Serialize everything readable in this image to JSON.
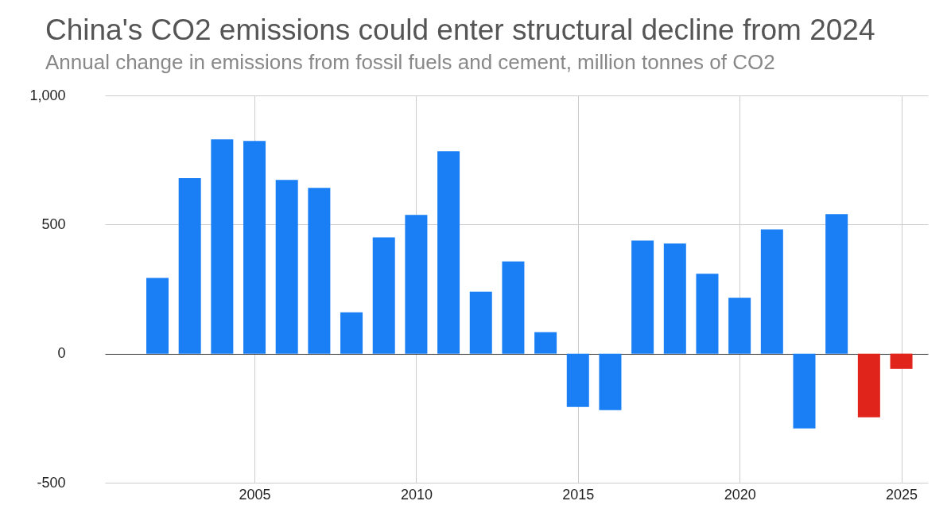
{
  "chart_data": {
    "type": "bar",
    "title": "China's CO2 emissions could enter structural decline from 2024",
    "subtitle": "Annual change in emissions from fossil fuels and cement, million tonnes of CO2",
    "x": [
      2002,
      2003,
      2004,
      2005,
      2006,
      2007,
      2008,
      2009,
      2010,
      2011,
      2012,
      2013,
      2014,
      2015,
      2016,
      2017,
      2018,
      2019,
      2020,
      2021,
      2022,
      2023,
      2024,
      2025
    ],
    "values": [
      293,
      680,
      830,
      824,
      673,
      642,
      160,
      450,
      537,
      784,
      240,
      357,
      83,
      -207,
      -219,
      438,
      426,
      309,
      216,
      481,
      -290,
      540,
      -247,
      -59
    ],
    "colors": [
      "#1a7ff5",
      "#1a7ff5",
      "#1a7ff5",
      "#1a7ff5",
      "#1a7ff5",
      "#1a7ff5",
      "#1a7ff5",
      "#1a7ff5",
      "#1a7ff5",
      "#1a7ff5",
      "#1a7ff5",
      "#1a7ff5",
      "#1a7ff5",
      "#1a7ff5",
      "#1a7ff5",
      "#1a7ff5",
      "#1a7ff5",
      "#1a7ff5",
      "#1a7ff5",
      "#1a7ff5",
      "#1a7ff5",
      "#1a7ff5",
      "#e0231b",
      "#e0231b"
    ],
    "xlim": [
      2000.5,
      2025.7
    ],
    "xticks": [
      2005,
      2010,
      2015,
      2020,
      2025
    ],
    "ylim": [
      -500,
      1000
    ],
    "yticks": [
      -500,
      0,
      500,
      {
        "value": 1000,
        "label": "1,000"
      }
    ],
    "grid": true
  }
}
